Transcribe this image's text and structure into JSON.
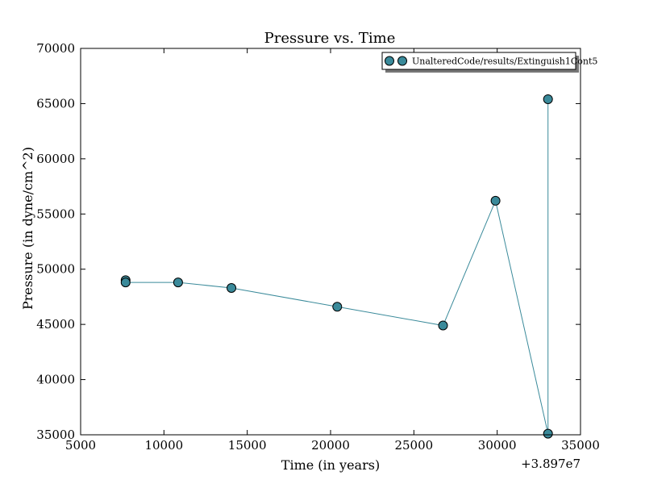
{
  "chart_data": {
    "type": "line",
    "title": "Pressure vs. Time",
    "xlabel": "Time (in years)",
    "ylabel": "Pressure (in dyne/cm^2)",
    "x_offset_label": "+3.897e7",
    "xlim": [
      5000,
      35000
    ],
    "ylim": [
      35000,
      70000
    ],
    "x_ticks": [
      5000,
      10000,
      15000,
      20000,
      25000,
      30000,
      35000
    ],
    "x_tick_labels": [
      "5000",
      "10000",
      "15000",
      "20000",
      "25000",
      "30000",
      "35000"
    ],
    "y_ticks": [
      35000,
      40000,
      45000,
      50000,
      55000,
      60000,
      65000,
      70000
    ],
    "y_tick_labels": [
      "35000",
      "40000",
      "45000",
      "50000",
      "55000",
      "60000",
      "65000",
      "70000"
    ],
    "grid": false,
    "legend_position": "top-right",
    "series": [
      {
        "name": "UnalteredCode/results/Extinguish1Cont5",
        "color": "#3a8a9a",
        "marker": "circle",
        "x": [
          7700,
          7700,
          10850,
          14050,
          20400,
          26750,
          29900,
          33050,
          33050
        ],
        "y": [
          49000,
          48800,
          48800,
          48300,
          46600,
          44900,
          56200,
          35100,
          65400
        ]
      }
    ]
  }
}
